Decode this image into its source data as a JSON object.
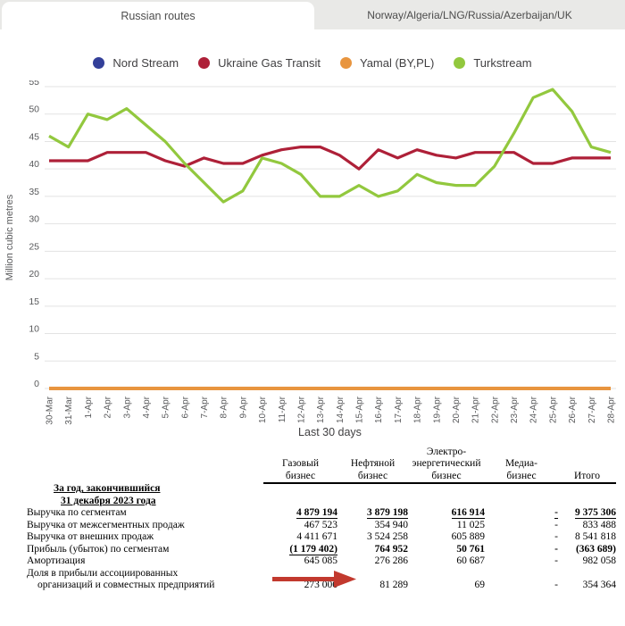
{
  "tabs": {
    "active": "Russian routes",
    "inactive": "Norway/Algeria/LNG/Russia/Azerbaijan/UK"
  },
  "chart_data": {
    "type": "line",
    "title": "",
    "ylabel": "Million cubic metres",
    "caption": "Last 30 days",
    "ylim": [
      0,
      55
    ],
    "ytick_step": 5,
    "grid": "horizontal",
    "legend_position": "top",
    "x": [
      "30-Mar",
      "31-Mar",
      "1-Apr",
      "2-Apr",
      "3-Apr",
      "4-Apr",
      "5-Apr",
      "6-Apr",
      "7-Apr",
      "8-Apr",
      "9-Apr",
      "10-Apr",
      "11-Apr",
      "12-Apr",
      "13-Apr",
      "14-Apr",
      "15-Apr",
      "16-Apr",
      "17-Apr",
      "18-Apr",
      "19-Apr",
      "20-Apr",
      "21-Apr",
      "22-Apr",
      "23-Apr",
      "24-Apr",
      "25-Apr",
      "26-Apr",
      "27-Apr",
      "28-Apr"
    ],
    "series": [
      {
        "name": "Nord Stream",
        "color": "#333f99",
        "values": [
          0,
          0,
          0,
          0,
          0,
          0,
          0,
          0,
          0,
          0,
          0,
          0,
          0,
          0,
          0,
          0,
          0,
          0,
          0,
          0,
          0,
          0,
          0,
          0,
          0,
          0,
          0,
          0,
          0,
          0
        ]
      },
      {
        "name": "Ukraine Gas Transit",
        "color": "#ae2038",
        "values": [
          41.5,
          41.5,
          41.5,
          43,
          43,
          43,
          41.5,
          40.5,
          42,
          41,
          41,
          42.5,
          43.5,
          44,
          44,
          42.5,
          40,
          43.5,
          42,
          43.5,
          42.5,
          42,
          43,
          43,
          43,
          41,
          41,
          42,
          42,
          42
        ]
      },
      {
        "name": "Yamal (BY,PL)",
        "color": "#e8953f",
        "values": [
          0,
          0,
          0,
          0,
          0,
          0,
          0,
          0,
          0,
          0,
          0,
          0,
          0,
          0,
          0,
          0,
          0,
          0,
          0,
          0,
          0,
          0,
          0,
          0,
          0,
          0,
          0,
          0,
          0,
          0
        ]
      },
      {
        "name": "Turkstream",
        "color": "#92c83e",
        "values": [
          46,
          44,
          50,
          49,
          51,
          48,
          45,
          41,
          37.5,
          34,
          36,
          42,
          41,
          39,
          35,
          35,
          37,
          35,
          36,
          39,
          37.5,
          37,
          37,
          40.5,
          46.5,
          53,
          54.5,
          50.5,
          44,
          43
        ]
      }
    ]
  },
  "table": {
    "col_headers": [
      [
        "Газовый",
        "бизнес"
      ],
      [
        "Нефтяной",
        "бизнес"
      ],
      [
        "Электро-",
        "энергетический",
        "бизнес"
      ],
      [
        "Медиа-",
        "бизнес"
      ],
      [
        "Итого"
      ]
    ],
    "title_lines": [
      "За год, закончившийся",
      "31 декабря 2023 года"
    ],
    "rows": [
      {
        "label_lines": [
          "Выручка по сегментам"
        ],
        "bold": true,
        "underline": "all",
        "values": [
          "4 879 194",
          "3 879 198",
          "616 914",
          "-",
          "9 375 306"
        ]
      },
      {
        "label_lines": [
          "Выручка от межсегментных продаж"
        ],
        "bold": false,
        "underline": "none",
        "values": [
          "467 523",
          "354 940",
          "11 025",
          "-",
          "833 488"
        ]
      },
      {
        "label_lines": [
          "Выручка от внешних продаж"
        ],
        "bold": false,
        "underline": "none",
        "values": [
          "4 411 671",
          "3 524 258",
          "605 889",
          "-",
          "8 541 818"
        ]
      },
      {
        "label_lines": [
          "Прибыль (убыток) по сегментам"
        ],
        "bold": true,
        "underline": "first",
        "values": [
          "(1 179 402)",
          "764 952",
          "50 761",
          "-",
          "(363 689)"
        ]
      },
      {
        "label_lines": [
          "Амортизация"
        ],
        "bold": false,
        "underline": "none",
        "values": [
          "645 085",
          "276 286",
          "60 687",
          "-",
          "982 058"
        ]
      },
      {
        "label_lines": [
          "Доля в прибыли ассоциированных",
          "организаций и совместных предприятий"
        ],
        "bold": false,
        "underline": "none",
        "values": [
          "273 006",
          "81 289",
          "69",
          "-",
          "354 364"
        ]
      }
    ]
  },
  "colors": {
    "tab_gray": "#e9e9e7",
    "grid_line": "#e3e3e3",
    "axis_text": "#58595b",
    "legend_text": "#414042",
    "arrow_red": "#c2392e"
  }
}
